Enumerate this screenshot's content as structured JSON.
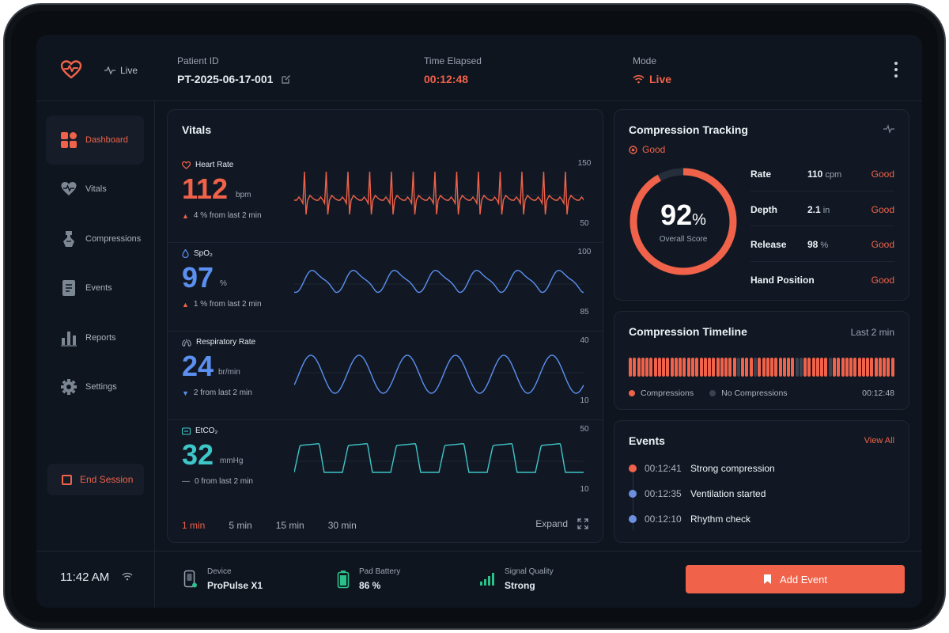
{
  "header": {
    "live_label": "Live",
    "patient_label": "Patient ID",
    "patient_id": "PT-2025-06-17-001",
    "time_label": "Time Elapsed",
    "time_value": "00:12:48",
    "mode_label": "Mode",
    "mode_value": "Live"
  },
  "sidebar": {
    "items": [
      {
        "label": "Dashboard",
        "icon": "dashboard-icon"
      },
      {
        "label": "Vitals",
        "icon": "heart-pulse-icon"
      },
      {
        "label": "Compressions",
        "icon": "compressions-icon"
      },
      {
        "label": "Events",
        "icon": "events-icon"
      },
      {
        "label": "Reports",
        "icon": "reports-icon"
      },
      {
        "label": "Settings",
        "icon": "gear-icon"
      }
    ],
    "end_session": "End Session"
  },
  "vitals": {
    "title": "Vitals",
    "heart_rate": {
      "name": "Heart Rate",
      "value": "112",
      "unit": "bpm",
      "change": "4 % from last 2 min",
      "max": "150",
      "min": "50"
    },
    "spo2": {
      "name": "SpO₂",
      "value": "97",
      "unit": "%",
      "change": "1 % from last 2 min",
      "max": "100",
      "min": "85"
    },
    "resp": {
      "name": "Respiratory Rate",
      "value": "24",
      "unit": "br/min",
      "change": "2 from last 2 min",
      "max": "40",
      "min": "10"
    },
    "etco2": {
      "name": "EtCO₂",
      "value": "32",
      "unit": "mmHg",
      "change": "0 from last 2 min",
      "max": "50",
      "min": "10"
    },
    "ranges": [
      "1 min",
      "5 min",
      "15 min",
      "30 min"
    ],
    "expand": "Expand"
  },
  "compression": {
    "title": "Compression Tracking",
    "status": "Good",
    "score": "92",
    "score_unit": "%",
    "score_fraction": 0.92,
    "score_label": "Overall Score",
    "metrics": [
      {
        "name": "Rate",
        "value": "110",
        "unit": "cpm",
        "status": "Good"
      },
      {
        "name": "Depth",
        "value": "2.1",
        "unit": "in",
        "status": "Good"
      },
      {
        "name": "Release",
        "value": "98",
        "unit": "%",
        "status": "Good"
      },
      {
        "name": "Hand Position",
        "value": "",
        "unit": "",
        "status": "Good"
      }
    ]
  },
  "timeline": {
    "title": "Compression Timeline",
    "range": "Last 2 min",
    "bars": [
      1,
      1,
      1,
      1,
      1,
      1,
      1,
      1,
      1,
      1,
      1,
      1,
      1,
      1,
      1,
      1,
      1,
      1,
      1,
      1,
      1,
      1,
      1,
      1,
      1,
      1,
      0,
      1,
      1,
      1,
      0,
      1,
      1,
      1,
      1,
      1,
      1,
      1,
      1,
      1,
      0,
      0,
      1,
      1,
      1,
      1,
      1,
      1,
      0,
      1,
      1,
      1,
      1,
      1,
      1,
      1,
      1,
      1,
      1,
      1,
      1,
      1,
      1,
      1
    ],
    "legend_on": "Compressions",
    "legend_off": "No Compressions",
    "time": "00:12:48"
  },
  "events": {
    "title": "Events",
    "view_all": "View All",
    "items": [
      {
        "time": "00:12:41",
        "text": "Strong compression",
        "color": "#f0624a"
      },
      {
        "time": "00:12:35",
        "text": "Ventilation started",
        "color": "#6d8fe0"
      },
      {
        "time": "00:12:10",
        "text": "Rhythm check",
        "color": "#6d8fe0"
      }
    ]
  },
  "footer": {
    "clock": "11:42 AM",
    "device_label": "Device",
    "device_value": "ProPulse X1",
    "battery_label": "Pad Battery",
    "battery_value": "86 %",
    "signal_label": "Signal Quality",
    "signal_value": "Strong",
    "add_event": "Add Event"
  },
  "colors": {
    "accent": "#f0624a",
    "blue": "#5b8ff0",
    "teal": "#3ec6c8",
    "no_compression": "#3a4150"
  }
}
